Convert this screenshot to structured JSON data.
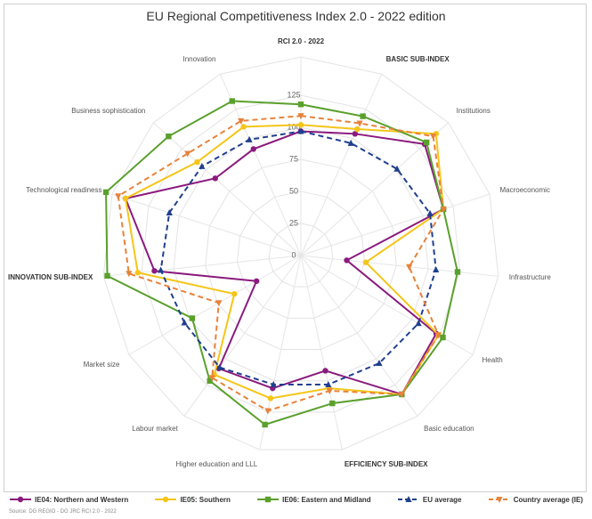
{
  "chart_data": {
    "type": "radar",
    "title": "EU Regional Competitiveness Index 2.0 - 2022 edition",
    "source": "Source: DG REGIO - DG JRC RCI 2.0 - 2022",
    "categories": [
      "RCI 2.0 - 2022",
      "BASIC SUB-INDEX",
      "Institutions",
      "Macroeconomic",
      "Infrastructure",
      "Health",
      "Basic education",
      "EFFICIENCY SUB-INDEX",
      "Higher education and LLL",
      "Labour market",
      "Market size",
      "INNOVATION SUB-INDEX",
      "Technological readiness",
      "Business sophistication",
      "Innovation"
    ],
    "ylim": [
      0,
      155
    ],
    "yticks": [
      0,
      25,
      50,
      75,
      100,
      125
    ],
    "grid": true,
    "series": [
      {
        "name": "IE04: Northern and Western",
        "color": "#8b1a7e",
        "marker": "circle",
        "dashed": false,
        "values": [
          97,
          104,
          130,
          117,
          36,
          122,
          134,
          92,
          106,
          109,
          40,
          115,
          144,
          90,
          91
        ]
      },
      {
        "name": "IE05: Southern",
        "color": "#f5c518",
        "marker": "circle",
        "dashed": false,
        "values": [
          102,
          108,
          142,
          117,
          51,
          124,
          134,
          106,
          114,
          115,
          60,
          128,
          144,
          109,
          110
        ]
      },
      {
        "name": "IE06: Eastern and Midland",
        "color": "#5aa02c",
        "marker": "square",
        "dashed": false,
        "values": [
          118,
          119,
          132,
          117,
          123,
          128,
          134,
          118,
          135,
          121,
          98,
          152,
          160,
          139,
          132
        ]
      },
      {
        "name": "EU average",
        "color": "#1f3f8f",
        "marker": "triangle",
        "dashed": true,
        "values": [
          97,
          96,
          101,
          106,
          106,
          106,
          104,
          103,
          103,
          108,
          105,
          110,
          108,
          104,
          99
        ]
      },
      {
        "name": "Country average (IE)",
        "color": "#e8823a",
        "marker": "triangle-down",
        "dashed": true,
        "values": [
          109,
          113,
          139,
          117,
          85,
          124,
          134,
          108,
          124,
          118,
          74,
          135,
          150,
          119,
          115
        ]
      }
    ]
  }
}
